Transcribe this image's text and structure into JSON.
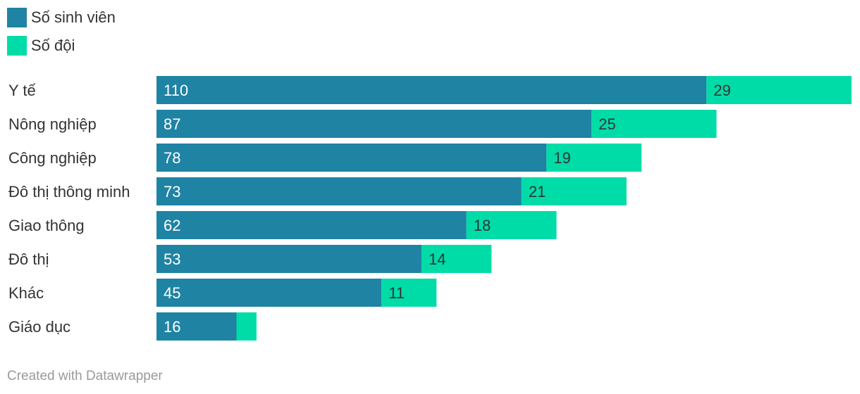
{
  "legend": [
    {
      "label": "Số sinh viên",
      "color": "#1f83a4"
    },
    {
      "label": "Số đội",
      "color": "#00dca8"
    }
  ],
  "footer": "Created with Datawrapper",
  "chart_data": {
    "type": "bar",
    "orientation": "horizontal",
    "stacked": true,
    "categories": [
      "Y tế",
      "Nông nghiệp",
      "Công nghiệp",
      "Đô thị thông minh",
      "Giao thông",
      "Đô thị",
      "Khác",
      "Giáo dục"
    ],
    "series": [
      {
        "name": "Số sinh viên",
        "color": "#1f83a4",
        "values": [
          110,
          87,
          78,
          73,
          62,
          53,
          45,
          16
        ]
      },
      {
        "name": "Số đội",
        "color": "#00dca8",
        "values": [
          29,
          25,
          19,
          21,
          18,
          14,
          11,
          4
        ]
      }
    ],
    "value_labels": [
      [
        "110",
        "87",
        "78",
        "73",
        "62",
        "53",
        "45",
        "16"
      ],
      [
        "29",
        "25",
        "19",
        "21",
        "18",
        "14",
        "11",
        ""
      ]
    ],
    "xlim": [
      0,
      139
    ],
    "grid": false,
    "legend_position": "top-left"
  }
}
